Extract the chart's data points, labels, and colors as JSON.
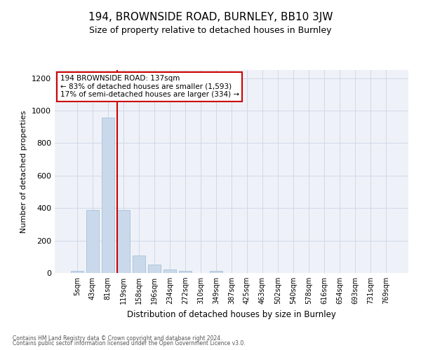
{
  "title": "194, BROWNSIDE ROAD, BURNLEY, BB10 3JW",
  "subtitle": "Size of property relative to detached houses in Burnley",
  "xlabel": "Distribution of detached houses by size in Burnley",
  "ylabel": "Number of detached properties",
  "categories": [
    "5sqm",
    "43sqm",
    "81sqm",
    "119sqm",
    "158sqm",
    "196sqm",
    "234sqm",
    "272sqm",
    "310sqm",
    "349sqm",
    "387sqm",
    "425sqm",
    "463sqm",
    "502sqm",
    "540sqm",
    "578sqm",
    "616sqm",
    "654sqm",
    "693sqm",
    "731sqm",
    "769sqm"
  ],
  "values": [
    12,
    390,
    955,
    390,
    108,
    52,
    22,
    12,
    0,
    12,
    0,
    0,
    0,
    0,
    0,
    0,
    0,
    0,
    0,
    0,
    0
  ],
  "bar_color": "#c9d9eb",
  "bar_edgecolor": "#a0b8d0",
  "vline_color": "#cc0000",
  "annotation_text": "194 BROWNSIDE ROAD: 137sqm\n← 83% of detached houses are smaller (1,593)\n17% of semi-detached houses are larger (334) →",
  "annotation_box_edgecolor": "#cc0000",
  "ylim": [
    0,
    1250
  ],
  "yticks": [
    0,
    200,
    400,
    600,
    800,
    1000,
    1200
  ],
  "grid_color": "#d0d8e8",
  "bg_color": "#eef2f8",
  "footer_line1": "Contains HM Land Registry data © Crown copyright and database right 2024.",
  "footer_line2": "Contains public sector information licensed under the Open Government Licence v3.0."
}
